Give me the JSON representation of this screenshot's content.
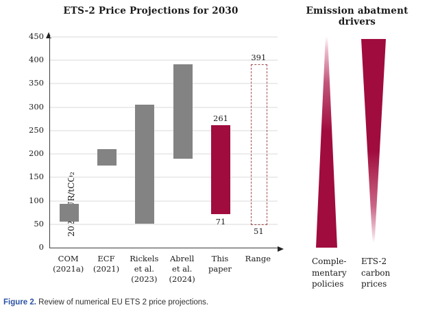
{
  "caption": {
    "label": "Figure 2.",
    "text": "Review of numerical EU ETS 2 price projections."
  },
  "chart_data": {
    "type": "bar",
    "subtype": "floating-range-columns",
    "title": "ETS-2 Price Projections for 2030",
    "ylabel": "2022EUR/tCO₂",
    "ylim": [
      0,
      450
    ],
    "ytick_step": 50,
    "grid": true,
    "categories": [
      "COM (2021a)",
      "ECF (2021)",
      "Rickels et al. (2023)",
      "Abrell et al. (2024)",
      "This paper",
      "Range"
    ],
    "category_lines": [
      [
        "COM",
        "(2021a)"
      ],
      [
        "ECF",
        "(2021)"
      ],
      [
        "Rickels",
        "et al.",
        "(2023)"
      ],
      [
        "Abrell",
        "et al.",
        "(2024)"
      ],
      [
        "This",
        "paper"
      ],
      [
        "Range"
      ]
    ],
    "series": [
      {
        "name": "COM (2021a)",
        "low": 55,
        "high": 93,
        "style": "solid",
        "color": "#838383"
      },
      {
        "name": "ECF (2021)",
        "low": 175,
        "high": 210,
        "style": "solid",
        "color": "#838383"
      },
      {
        "name": "Rickels et al. (2023)",
        "low": 51,
        "high": 305,
        "style": "solid",
        "color": "#838383"
      },
      {
        "name": "Abrell et al. (2024)",
        "low": 190,
        "high": 391,
        "style": "solid",
        "color": "#838383"
      },
      {
        "name": "This paper",
        "low": 71,
        "high": 261,
        "style": "solid",
        "color": "#a00c3d",
        "label_low": "71",
        "label_high": "261"
      },
      {
        "name": "Range",
        "low": 51,
        "high": 391,
        "style": "dashed-outline",
        "color": "#9b4a4f",
        "label_low": "51",
        "label_high": "391"
      }
    ],
    "colors": {
      "bar_gray": "#838383",
      "bar_crimson": "#a00c3d",
      "range_outline": "#9b4a4f",
      "gridline": "#ececec",
      "axis": "#3a3a3a"
    }
  },
  "drivers": {
    "title": "Emission abatment drivers",
    "accent_color": "#a00c3d",
    "items": [
      {
        "label_lines": [
          "Comple-",
          "mentary",
          "policies"
        ],
        "shape": "wedge-widening-down"
      },
      {
        "label_lines": [
          "ETS-2",
          "carbon",
          "prices"
        ],
        "shape": "wedge-narrowing-down"
      }
    ]
  }
}
